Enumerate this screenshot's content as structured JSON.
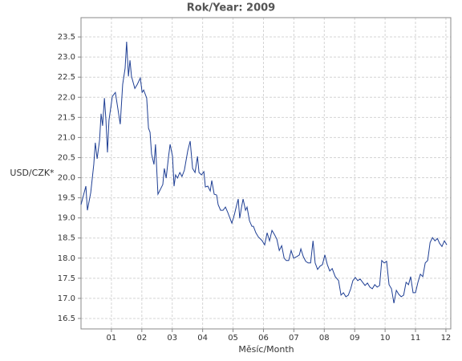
{
  "chart_data": {
    "type": "line",
    "title": "Rok/Year: 2009",
    "xlabel": "Měsíc/Month",
    "ylabel": "USD/CZK*",
    "xlim": [
      0,
      12.16
    ],
    "ylim": [
      16.24,
      23.98
    ],
    "xticks": [
      {
        "value": 1,
        "label": "01"
      },
      {
        "value": 2,
        "label": "02"
      },
      {
        "value": 3,
        "label": "03"
      },
      {
        "value": 4,
        "label": "04"
      },
      {
        "value": 5,
        "label": "05"
      },
      {
        "value": 6,
        "label": "06"
      },
      {
        "value": 7,
        "label": "07"
      },
      {
        "value": 8,
        "label": "08"
      },
      {
        "value": 9,
        "label": "09"
      },
      {
        "value": 10,
        "label": "10"
      },
      {
        "value": 11,
        "label": "11"
      },
      {
        "value": 12,
        "label": "12"
      }
    ],
    "yticks": [
      16.5,
      {
        "value": 17,
        "label": "17.0"
      },
      17.5,
      {
        "value": 18,
        "label": "18.0"
      },
      18.5,
      {
        "value": 19,
        "label": "19.0"
      },
      19.5,
      {
        "value": 20,
        "label": "20.0"
      },
      20.5,
      {
        "value": 21,
        "label": "21.0"
      },
      21.5,
      {
        "value": 22,
        "label": "22.0"
      },
      22.5,
      {
        "value": 23,
        "label": "23.0"
      },
      23.5
    ],
    "grid": true,
    "color": "#1f3f94",
    "x": [
      0,
      0.16,
      0.21,
      0.32,
      0.42,
      0.47,
      0.53,
      0.61,
      0.66,
      0.71,
      0.77,
      0.82,
      0.87,
      0.92,
      1.03,
      1.13,
      1.29,
      1.37,
      1.45,
      1.5,
      1.56,
      1.61,
      1.66,
      1.77,
      1.85,
      1.95,
      2.01,
      2.06,
      2.16,
      2.22,
      2.27,
      2.32,
      2.4,
      2.45,
      2.53,
      2.61,
      2.69,
      2.74,
      2.8,
      2.88,
      2.93,
      3.01,
      3.06,
      3.11,
      3.17,
      3.25,
      3.32,
      3.4,
      3.51,
      3.59,
      3.67,
      3.75,
      3.83,
      3.88,
      3.96,
      4.04,
      4.09,
      4.17,
      4.25,
      4.3,
      4.38,
      4.46,
      4.51,
      4.59,
      4.67,
      4.75,
      4.83,
      4.88,
      4.96,
      5.04,
      5.09,
      5.17,
      5.22,
      5.28,
      5.33,
      5.41,
      5.46,
      5.54,
      5.62,
      5.67,
      5.75,
      5.83,
      5.91,
      5.96,
      6.04,
      6.12,
      6.2,
      6.28,
      6.36,
      6.44,
      6.52,
      6.6,
      6.68,
      6.75,
      6.83,
      6.91,
      6.99,
      7.1,
      7.18,
      7.23,
      7.31,
      7.39,
      7.47,
      7.55,
      7.63,
      7.7,
      7.78,
      7.86,
      7.94,
      8.02,
      8.1,
      8.18,
      8.26,
      8.36,
      8.47,
      8.55,
      8.63,
      8.71,
      8.79,
      8.87,
      8.94,
      9.02,
      9.1,
      9.18,
      9.26,
      9.34,
      9.42,
      9.5,
      9.58,
      9.66,
      9.74,
      9.82,
      9.89,
      9.97,
      10.05,
      10.13,
      10.21,
      10.29,
      10.37,
      10.45,
      10.53,
      10.61,
      10.69,
      10.77,
      10.84,
      10.92,
      11.0,
      11.08,
      11.16,
      11.24,
      11.32,
      11.4,
      11.48,
      11.56,
      11.64,
      11.72,
      11.79,
      11.87,
      11.95,
      12.03
    ],
    "values": [
      19.33,
      19.79,
      19.19,
      19.63,
      20.33,
      20.87,
      20.47,
      20.93,
      21.59,
      21.29,
      21.98,
      21.43,
      20.63,
      21.43,
      22.02,
      22.12,
      21.33,
      22.32,
      22.72,
      23.38,
      22.52,
      22.92,
      22.52,
      22.22,
      22.32,
      22.48,
      22.12,
      22.18,
      21.98,
      21.23,
      21.13,
      20.59,
      20.33,
      20.83,
      19.59,
      19.71,
      19.83,
      20.23,
      19.99,
      20.53,
      20.83,
      20.53,
      19.79,
      20.07,
      19.99,
      20.13,
      20.03,
      20.19,
      20.67,
      20.91,
      20.23,
      20.13,
      20.53,
      20.13,
      20.07,
      20.15,
      19.77,
      19.79,
      19.67,
      19.93,
      19.59,
      19.57,
      19.33,
      19.19,
      19.19,
      19.27,
      19.13,
      19.03,
      18.87,
      19.07,
      19.23,
      19.47,
      18.99,
      19.27,
      19.47,
      19.19,
      19.27,
      18.93,
      18.79,
      18.79,
      18.63,
      18.53,
      18.47,
      18.43,
      18.33,
      18.63,
      18.43,
      18.69,
      18.59,
      18.47,
      18.19,
      18.31,
      18.0,
      17.94,
      17.94,
      18.19,
      18.0,
      18.04,
      18.08,
      18.23,
      18.04,
      17.92,
      17.88,
      17.88,
      18.43,
      17.88,
      17.72,
      17.8,
      17.84,
      18.08,
      17.84,
      17.68,
      17.74,
      17.54,
      17.44,
      17.08,
      17.14,
      17.04,
      17.08,
      17.24,
      17.44,
      17.52,
      17.44,
      17.48,
      17.4,
      17.32,
      17.38,
      17.28,
      17.24,
      17.34,
      17.28,
      17.32,
      17.94,
      17.88,
      17.92,
      17.34,
      17.24,
      16.88,
      17.2,
      17.1,
      17.04,
      17.08,
      17.4,
      17.34,
      17.54,
      17.14,
      17.14,
      17.4,
      17.6,
      17.54,
      17.88,
      17.94,
      18.39,
      18.51,
      18.43,
      18.49,
      18.37,
      18.29,
      18.43,
      18.33
    ]
  }
}
